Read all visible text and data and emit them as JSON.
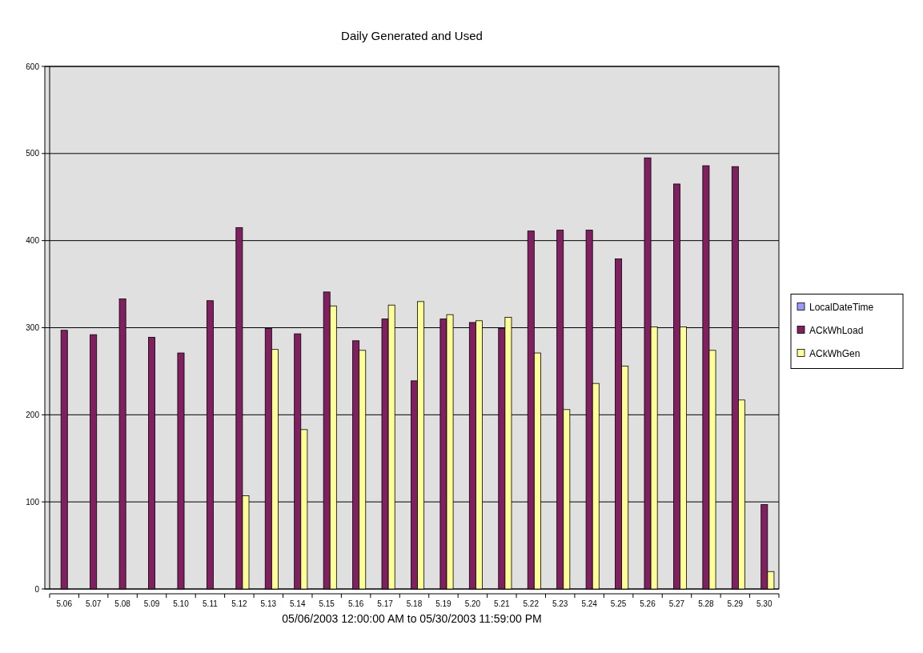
{
  "chart_data": {
    "type": "bar",
    "title": "Daily Generated and Used",
    "xlabel": "05/06/2003 12:00:00 AM to 05/30/2003 11:59:00 PM",
    "categories": [
      "5.06",
      "5.07",
      "5.08",
      "5.09",
      "5.10",
      "5.11",
      "5.12",
      "5.13",
      "5.14",
      "5.15",
      "5.16",
      "5.17",
      "5.18",
      "5.19",
      "5.20",
      "5.21",
      "5.22",
      "5.23",
      "5.24",
      "5.25",
      "5.26",
      "5.27",
      "5.28",
      "5.29",
      "5.30"
    ],
    "series": [
      {
        "name": "LocalDateTime",
        "color": "#9999ff",
        "values": [
          null,
          null,
          null,
          null,
          null,
          null,
          null,
          null,
          null,
          null,
          null,
          null,
          null,
          null,
          null,
          null,
          null,
          null,
          null,
          null,
          null,
          null,
          null,
          null,
          null
        ]
      },
      {
        "name": "ACkWhLoad",
        "color": "#802060",
        "values": [
          297,
          292,
          333,
          289,
          271,
          331,
          415,
          299,
          293,
          341,
          285,
          310,
          239,
          310,
          306,
          299,
          411,
          412,
          412,
          379,
          495,
          465,
          486,
          485,
          97
        ]
      },
      {
        "name": "ACkWhGen",
        "color": "#ffff99",
        "values": [
          null,
          null,
          null,
          null,
          null,
          null,
          107,
          275,
          183,
          325,
          274,
          326,
          330,
          315,
          308,
          312,
          271,
          206,
          236,
          256,
          301,
          301,
          274,
          217,
          20
        ]
      }
    ],
    "ylim": [
      0,
      600
    ],
    "yticks": [
      0,
      100,
      200,
      300,
      400,
      500,
      600
    ],
    "grid": "y",
    "legend": "right"
  }
}
